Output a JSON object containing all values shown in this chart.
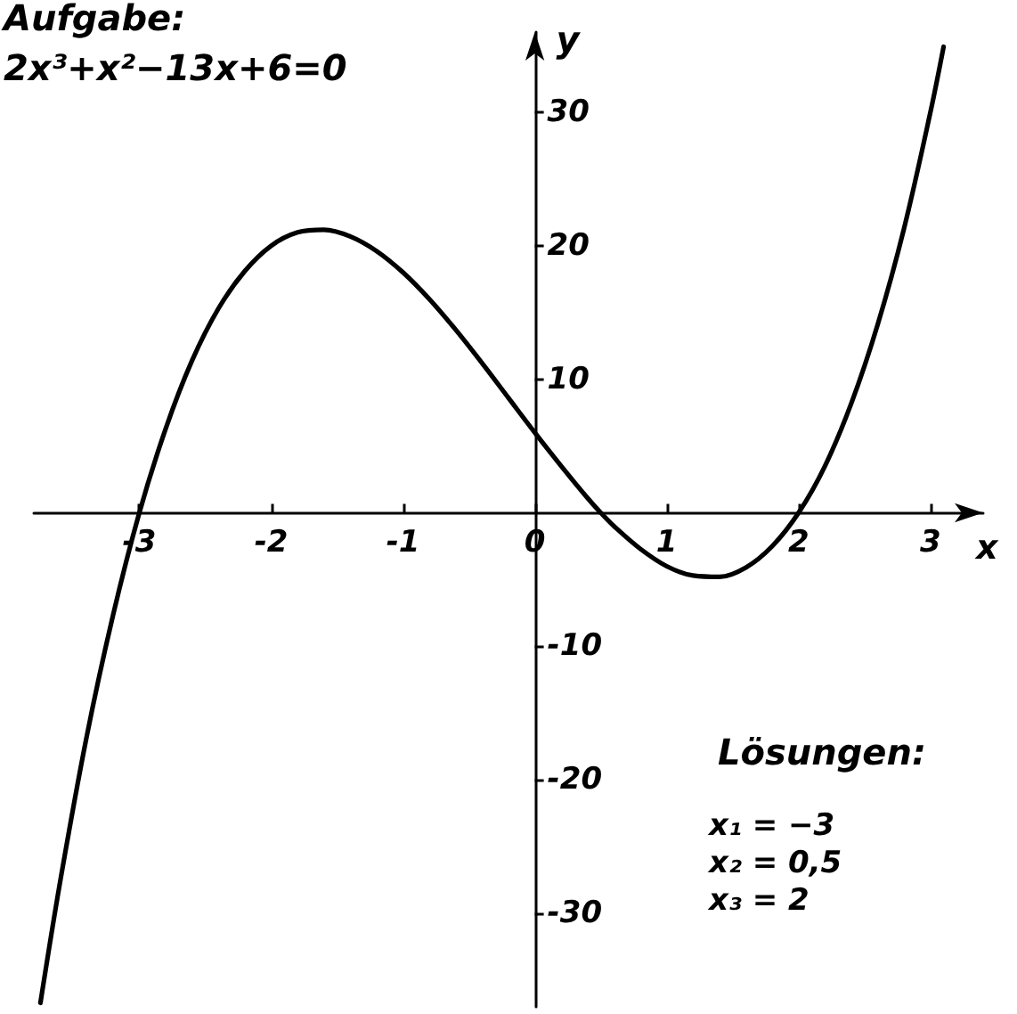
{
  "chart_data": {
    "type": "line",
    "title": "Aufgabe:",
    "subtitle": "2x³+x²−13x+6=0",
    "xlabel": "x",
    "ylabel": "y",
    "x": [
      -3.75,
      -3.6,
      -3.4,
      -3.2,
      -3,
      -2.8,
      -2.6,
      -2.4,
      -2.2,
      -2,
      -1.8,
      -1.6,
      -1.4,
      -1.2,
      -1,
      -0.8,
      -0.6,
      -0.4,
      -0.2,
      0,
      0.2,
      0.4,
      0.5,
      0.6,
      0.8,
      1,
      1.2,
      1.4,
      1.6,
      1.8,
      2,
      2.2,
      2.4,
      2.6,
      2.8,
      3,
      3.1
    ],
    "series": [
      {
        "color": "#000000",
        "values": [
          -36.7,
          -27.6,
          -16.8,
          -7.7,
          0,
          6.3,
          11.4,
          15.3,
          18.1,
          20,
          21,
          21.2,
          20.7,
          19.6,
          18,
          16,
          13.7,
          11.2,
          8.6,
          6,
          3.5,
          1.1,
          0,
          -1,
          -2.7,
          -4,
          -4.7,
          -4.8,
          -4.1,
          -2.5,
          0,
          3.5,
          8.2,
          14.1,
          21.3,
          30,
          34.9
        ]
      }
    ],
    "xlim": [
      -3.8,
      3.4
    ],
    "ylim": [
      -37,
      36
    ],
    "xticks": [
      -3,
      -2,
      -1,
      0,
      1,
      2,
      3
    ],
    "yticks": [
      -30,
      -20,
      -10,
      10,
      20,
      30
    ],
    "grid": false,
    "annotations": [
      "Lösungen:",
      "x₁ = −3",
      "x₂ = 0,5",
      "x₃ = 2"
    ]
  }
}
